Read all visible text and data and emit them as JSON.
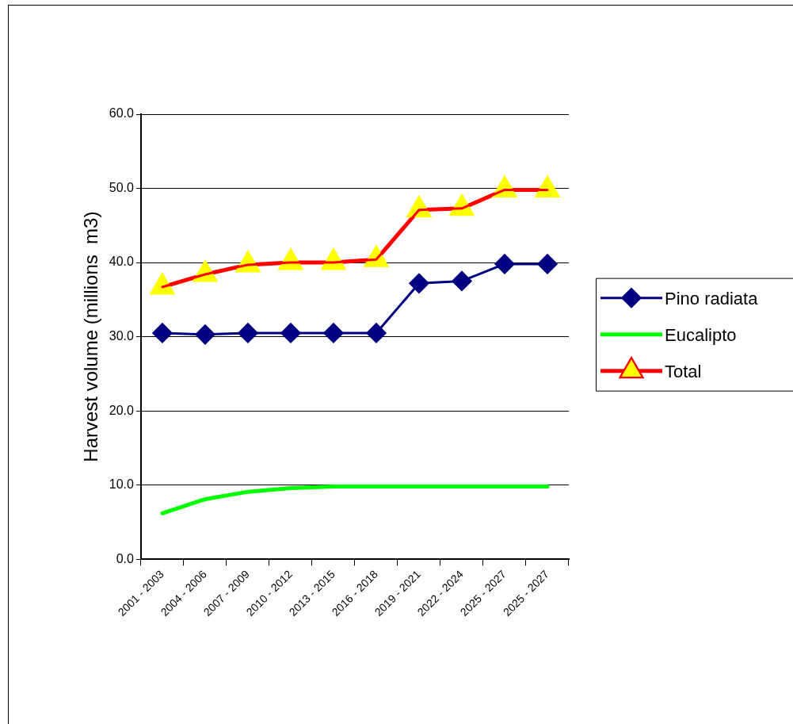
{
  "chart_data": {
    "type": "line",
    "ylabel": "Harvest volume (millions  m3)",
    "categories": [
      "2001 - 2003",
      "2004 - 2006",
      "2007 - 2009",
      "2010 - 2012",
      "2013 - 2015",
      "2016 - 2018",
      "2019 - 2021",
      "2022 - 2024",
      "2025 - 2027",
      "2025 - 2027"
    ],
    "series": [
      {
        "name": "Pino radiata",
        "color": "#000080",
        "marker": "diamond",
        "values": [
          30.5,
          30.3,
          30.5,
          30.5,
          30.5,
          30.5,
          37.2,
          37.5,
          39.8,
          39.8
        ]
      },
      {
        "name": "Eucalipto",
        "color": "#00ff00",
        "marker": "none",
        "values": [
          6.2,
          8.1,
          9.1,
          9.6,
          9.8,
          9.8,
          9.8,
          9.8,
          9.8,
          9.8
        ]
      },
      {
        "name": "Total",
        "color": "#ff0000",
        "marker": "triangle",
        "values": [
          36.7,
          38.4,
          39.7,
          40.0,
          40.0,
          40.4,
          47.1,
          47.3,
          49.8,
          49.8
        ]
      }
    ],
    "ylim": [
      0,
      60
    ],
    "yticks": [
      {
        "value": 0,
        "label": "0.0"
      },
      {
        "value": 10,
        "label": "10.0"
      },
      {
        "value": 20,
        "label": "20.0"
      },
      {
        "value": 30,
        "label": "30.0"
      },
      {
        "value": 40,
        "label": "40.0"
      },
      {
        "value": 50,
        "label": "50.0"
      },
      {
        "value": 60,
        "label": "60.0"
      }
    ],
    "grid": "y",
    "legend": "right",
    "line_style": "solid"
  }
}
